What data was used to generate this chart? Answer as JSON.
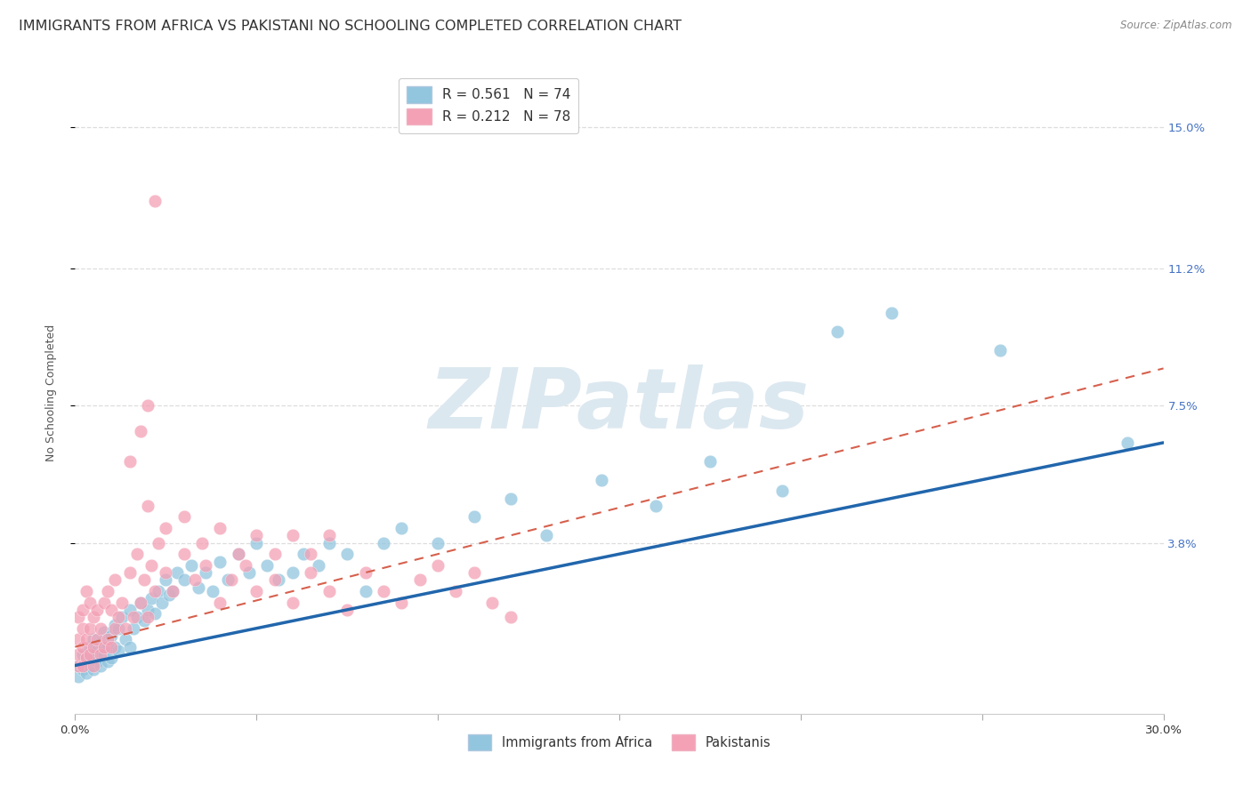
{
  "title": "IMMIGRANTS FROM AFRICA VS PAKISTANI NO SCHOOLING COMPLETED CORRELATION CHART",
  "source_text": "Source: ZipAtlas.com",
  "ylabel": "No Schooling Completed",
  "xlim": [
    0.0,
    0.3
  ],
  "ylim": [
    -0.008,
    0.165
  ],
  "ytick_labels": [
    "3.8%",
    "7.5%",
    "11.2%",
    "15.0%"
  ],
  "ytick_values": [
    0.038,
    0.075,
    0.112,
    0.15
  ],
  "xtick_positions": [
    0.0,
    0.05,
    0.1,
    0.15,
    0.2,
    0.25,
    0.3
  ],
  "legend_entry1": "R = 0.561   N = 74",
  "legend_entry2": "R = 0.212   N = 78",
  "legend_label1": "Immigrants from Africa",
  "legend_label2": "Pakistanis",
  "color_blue": "#92c5de",
  "color_pink": "#f4a0b5",
  "color_line_blue": "#2166ac",
  "color_line_pink": "#d6604d",
  "background_color": "#ffffff",
  "grid_color": "#dddddd",
  "watermark_text": "ZIPatlas",
  "watermark_color": "#dce8f0",
  "title_fontsize": 11.5,
  "axis_label_fontsize": 9,
  "tick_label_fontsize": 9.5,
  "legend_fontsize": 11,
  "blue_x": [
    0.001,
    0.001,
    0.002,
    0.002,
    0.003,
    0.003,
    0.004,
    0.004,
    0.005,
    0.005,
    0.005,
    0.006,
    0.006,
    0.007,
    0.007,
    0.008,
    0.008,
    0.009,
    0.009,
    0.01,
    0.01,
    0.011,
    0.011,
    0.012,
    0.012,
    0.013,
    0.014,
    0.015,
    0.015,
    0.016,
    0.017,
    0.018,
    0.019,
    0.02,
    0.021,
    0.022,
    0.023,
    0.024,
    0.025,
    0.026,
    0.027,
    0.028,
    0.03,
    0.032,
    0.034,
    0.036,
    0.038,
    0.04,
    0.042,
    0.045,
    0.048,
    0.05,
    0.053,
    0.056,
    0.06,
    0.063,
    0.067,
    0.07,
    0.075,
    0.08,
    0.085,
    0.09,
    0.1,
    0.11,
    0.12,
    0.13,
    0.145,
    0.16,
    0.175,
    0.195,
    0.21,
    0.225,
    0.255,
    0.29
  ],
  "blue_y": [
    0.002,
    0.005,
    0.004,
    0.008,
    0.003,
    0.007,
    0.005,
    0.01,
    0.004,
    0.007,
    0.012,
    0.006,
    0.009,
    0.005,
    0.011,
    0.008,
    0.014,
    0.006,
    0.01,
    0.007,
    0.013,
    0.01,
    0.016,
    0.009,
    0.015,
    0.018,
    0.012,
    0.01,
    0.02,
    0.015,
    0.018,
    0.022,
    0.017,
    0.02,
    0.023,
    0.019,
    0.025,
    0.022,
    0.028,
    0.024,
    0.025,
    0.03,
    0.028,
    0.032,
    0.026,
    0.03,
    0.025,
    0.033,
    0.028,
    0.035,
    0.03,
    0.038,
    0.032,
    0.028,
    0.03,
    0.035,
    0.032,
    0.038,
    0.035,
    0.025,
    0.038,
    0.042,
    0.038,
    0.045,
    0.05,
    0.04,
    0.055,
    0.048,
    0.06,
    0.052,
    0.095,
    0.1,
    0.09,
    0.065
  ],
  "pink_x": [
    0.001,
    0.001,
    0.001,
    0.001,
    0.002,
    0.002,
    0.002,
    0.002,
    0.003,
    0.003,
    0.003,
    0.004,
    0.004,
    0.004,
    0.005,
    0.005,
    0.005,
    0.006,
    0.006,
    0.007,
    0.007,
    0.008,
    0.008,
    0.009,
    0.009,
    0.01,
    0.01,
    0.011,
    0.011,
    0.012,
    0.013,
    0.014,
    0.015,
    0.016,
    0.017,
    0.018,
    0.019,
    0.02,
    0.021,
    0.022,
    0.023,
    0.025,
    0.027,
    0.03,
    0.033,
    0.036,
    0.04,
    0.043,
    0.047,
    0.05,
    0.055,
    0.06,
    0.065,
    0.07,
    0.075,
    0.08,
    0.085,
    0.09,
    0.095,
    0.1,
    0.105,
    0.11,
    0.115,
    0.12,
    0.02,
    0.025,
    0.03,
    0.035,
    0.04,
    0.045,
    0.05,
    0.055,
    0.06,
    0.065,
    0.07,
    0.015,
    0.018,
    0.02
  ],
  "pink_y": [
    0.005,
    0.008,
    0.012,
    0.018,
    0.005,
    0.01,
    0.015,
    0.02,
    0.007,
    0.012,
    0.025,
    0.008,
    0.015,
    0.022,
    0.005,
    0.01,
    0.018,
    0.012,
    0.02,
    0.008,
    0.015,
    0.01,
    0.022,
    0.012,
    0.025,
    0.01,
    0.02,
    0.015,
    0.028,
    0.018,
    0.022,
    0.015,
    0.03,
    0.018,
    0.035,
    0.022,
    0.028,
    0.018,
    0.032,
    0.025,
    0.038,
    0.03,
    0.025,
    0.035,
    0.028,
    0.032,
    0.022,
    0.028,
    0.032,
    0.025,
    0.028,
    0.022,
    0.03,
    0.025,
    0.02,
    0.03,
    0.025,
    0.022,
    0.028,
    0.032,
    0.025,
    0.03,
    0.022,
    0.018,
    0.048,
    0.042,
    0.045,
    0.038,
    0.042,
    0.035,
    0.04,
    0.035,
    0.04,
    0.035,
    0.04,
    0.06,
    0.068,
    0.075
  ],
  "pink_outlier_x": [
    0.022
  ],
  "pink_outlier_y": [
    0.13
  ]
}
